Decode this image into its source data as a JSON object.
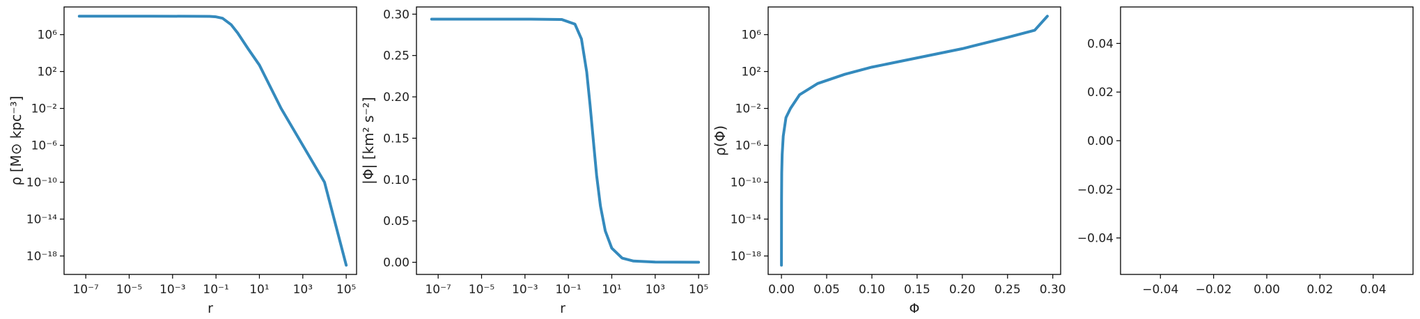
{
  "colors": {
    "line": "#348ABD",
    "axis": "#000000",
    "text": "#222222"
  },
  "chart_data": [
    {
      "type": "line",
      "title": "",
      "xlabel": "r",
      "ylabel": "ρ [M⊙ kpc⁻³]",
      "xscale": "log",
      "yscale": "log",
      "xlim": [
        1e-08,
        300000.0
      ],
      "ylim": [
        1e-20,
        1000000000.0
      ],
      "xticks": [
        1e-07,
        1e-05,
        0.001,
        0.1,
        10.0,
        1000.0,
        100000.0
      ],
      "xtick_labels": [
        "10⁻⁷",
        "10⁻⁵",
        "10⁻³",
        "10⁻¹",
        "10¹",
        "10³",
        "10⁵"
      ],
      "yticks": [
        1e-18,
        1e-14,
        1e-10,
        1e-06,
        0.01,
        100.0,
        1000000.0
      ],
      "ytick_labels": [
        "10⁻¹⁸",
        "10⁻¹⁴",
        "10⁻¹⁰",
        "10⁻⁶",
        "10⁻²",
        "10²",
        "10⁶"
      ],
      "grid": false,
      "series": [
        {
          "x": [
            5e-08,
            0.0001,
            0.01,
            0.05,
            0.1,
            0.2,
            0.5,
            1,
            3,
            10,
            100,
            1000,
            10000,
            100000
          ],
          "y": [
            100000000.0,
            100000000.0,
            98000000.0,
            95000000.0,
            85000000.0,
            60000000.0,
            12000000.0,
            1500000.0,
            30000.0,
            500.0,
            0.01,
            1e-06,
            1e-10,
            1e-19
          ]
        }
      ]
    },
    {
      "type": "line",
      "title": "",
      "xlabel": "r",
      "ylabel": "|Φ| [km² s⁻²]",
      "xscale": "log",
      "yscale": "linear",
      "xlim": [
        1e-08,
        300000.0
      ],
      "ylim": [
        -0.0147,
        0.3087
      ],
      "xticks": [
        1e-07,
        1e-05,
        0.001,
        0.1,
        10.0,
        1000.0,
        100000.0
      ],
      "xtick_labels": [
        "10⁻⁷",
        "10⁻⁵",
        "10⁻³",
        "10⁻¹",
        "10¹",
        "10³",
        "10⁵"
      ],
      "yticks": [
        0,
        0.05,
        0.1,
        0.15,
        0.2,
        0.25,
        0.3
      ],
      "ytick_labels": [
        "0.00",
        "0.05",
        "0.10",
        "0.15",
        "0.20",
        "0.25",
        "0.30"
      ],
      "grid": false,
      "series": [
        {
          "x": [
            5e-08,
            0.001,
            0.05,
            0.2,
            0.4,
            0.7,
            1,
            1.5,
            2,
            3,
            5,
            10,
            30,
            100,
            1000,
            100000
          ],
          "y": [
            0.294,
            0.294,
            0.2935,
            0.288,
            0.27,
            0.23,
            0.19,
            0.14,
            0.105,
            0.068,
            0.038,
            0.017,
            0.005,
            0.0015,
            0.0002,
            0.0
          ]
        }
      ]
    },
    {
      "type": "line",
      "title": "",
      "xlabel": "Φ",
      "ylabel": "ρ(Φ)",
      "xscale": "linear",
      "yscale": "log",
      "xlim": [
        -0.0147,
        0.3087
      ],
      "ylim": [
        1e-20,
        1000000000.0
      ],
      "xticks": [
        0,
        0.05,
        0.1,
        0.15,
        0.2,
        0.25,
        0.3
      ],
      "xtick_labels": [
        "0.00",
        "0.05",
        "0.10",
        "0.15",
        "0.20",
        "0.25",
        "0.30"
      ],
      "yticks": [
        1e-18,
        1e-14,
        1e-10,
        1e-06,
        0.01,
        100.0,
        1000000.0
      ],
      "ytick_labels": [
        "10⁻¹⁸",
        "10⁻¹⁴",
        "10⁻¹⁰",
        "10⁻⁶",
        "10⁻²",
        "10²",
        "10⁶"
      ],
      "grid": false,
      "series": [
        {
          "x": [
            0.0,
            0.0001,
            0.0003,
            0.0008,
            0.002,
            0.005,
            0.01,
            0.02,
            0.04,
            0.07,
            0.1,
            0.15,
            0.2,
            0.25,
            0.28,
            0.294
          ],
          "y": [
            1e-19,
            1e-12,
            1e-09,
            1e-07,
            1e-05,
            0.001,
            0.01,
            0.3,
            5,
            50,
            300.0,
            3000.0,
            30000.0,
            500000.0,
            3000000.0,
            100000000.0
          ]
        }
      ]
    },
    {
      "type": "line",
      "title": "",
      "xlabel": "",
      "ylabel": "",
      "xscale": "linear",
      "yscale": "linear",
      "xlim": [
        -0.055,
        0.055
      ],
      "ylim": [
        -0.055,
        0.055
      ],
      "xticks": [
        -0.04,
        -0.02,
        0.0,
        0.02,
        0.04
      ],
      "xtick_labels": [
        "−0.04",
        "−0.02",
        "0.00",
        "0.02",
        "0.04"
      ],
      "yticks": [
        -0.04,
        -0.02,
        0.0,
        0.02,
        0.04
      ],
      "ytick_labels": [
        "−0.04",
        "−0.02",
        "0.00",
        "0.02",
        "0.04"
      ],
      "grid": false,
      "series": []
    }
  ]
}
